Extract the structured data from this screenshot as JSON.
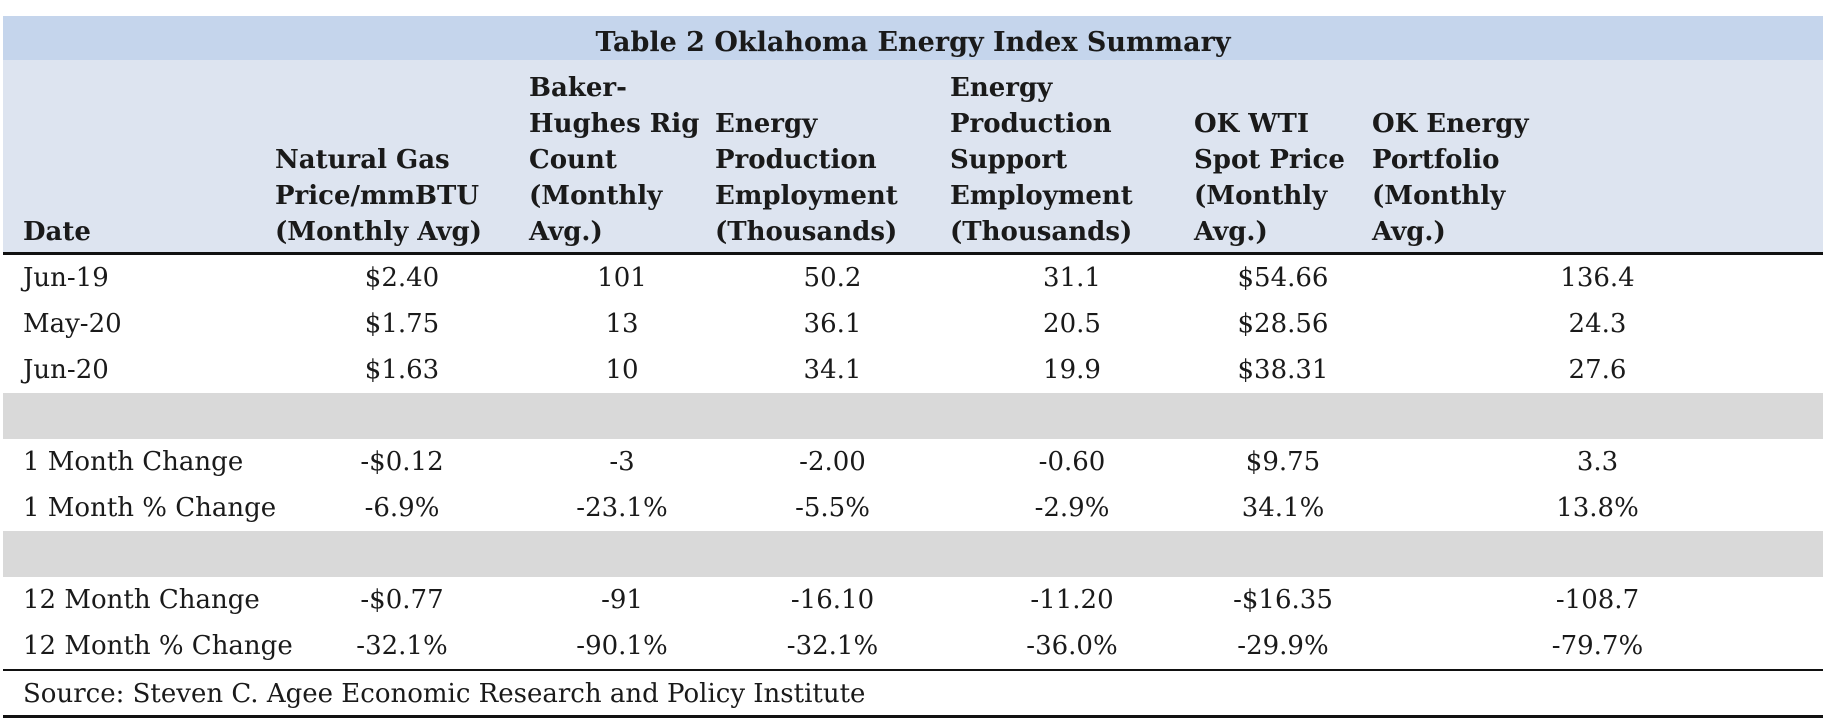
{
  "title": "Table 2 Oklahoma Energy Index Summary",
  "headers": [
    [
      "Date"
    ],
    [
      "Natural Gas",
      "Price/mmBTU",
      "(Monthly Avg)"
    ],
    [
      "Baker-",
      "Hughes Rig",
      "Count",
      "(Monthly",
      "Avg.)"
    ],
    [
      "Energy",
      "Production",
      "Employment",
      "(Thousands)"
    ],
    [
      "Energy",
      "Production",
      "Support",
      "Employment",
      "(Thousands)"
    ],
    [
      "OK WTI",
      "Spot Price",
      "(Monthly",
      "Avg.)"
    ],
    [
      "OK Energy",
      "Portfolio",
      "(Monthly",
      "Avg.)"
    ]
  ],
  "rows": [
    {
      "label": "Jun-19",
      "values": [
        "$2.40",
        "101",
        "50.2",
        "31.1",
        "$54.66",
        "136.4"
      ]
    },
    {
      "label": "May-20",
      "values": [
        "$1.75",
        "13",
        "36.1",
        "20.5",
        "$28.56",
        "24.3"
      ]
    },
    {
      "label": "Jun-20",
      "values": [
        "$1.63",
        "10",
        "34.1",
        "19.9",
        "$38.31",
        "27.6"
      ]
    },
    {
      "spacer": true
    },
    {
      "label": "1 Month Change",
      "values": [
        "-$0.12",
        "-3",
        "-2.00",
        "-0.60",
        "$9.75",
        "3.3"
      ]
    },
    {
      "label": "1 Month % Change",
      "values": [
        "-6.9%",
        "-23.1%",
        "-5.5%",
        "-2.9%",
        "34.1%",
        "13.8%"
      ]
    },
    {
      "spacer": true
    },
    {
      "label": "12 Month Change",
      "values": [
        "-$0.77",
        "-91",
        "-16.10",
        "-11.20",
        "-$16.35",
        "-108.7"
      ]
    },
    {
      "label": "12 Month % Change",
      "values": [
        "-32.1%",
        "-90.1%",
        "-32.1%",
        "-36.0%",
        "-29.9%",
        "-79.7%"
      ]
    }
  ],
  "source": "Source: Steven C. Agee Economic Research and Policy Institute",
  "colors": {
    "title_bg": "#c5d5ec",
    "header_bg": "#dde4f0",
    "spacer_bg": "#d9d9d9"
  }
}
